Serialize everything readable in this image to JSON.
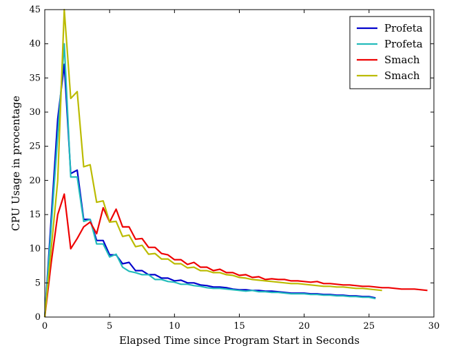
{
  "chart_data": {
    "type": "line",
    "xlabel": "Elapsed Time since Program Start in Seconds",
    "ylabel": "CPU Usage in procentage",
    "xlim": [
      0,
      30
    ],
    "ylim": [
      0,
      45
    ],
    "xticks": [
      0,
      5,
      10,
      15,
      20,
      25,
      30
    ],
    "yticks": [
      0,
      5,
      10,
      15,
      20,
      25,
      30,
      35,
      40,
      45
    ],
    "xtick_labels": [
      "0",
      "5",
      "10",
      "15",
      "20",
      "25",
      "30"
    ],
    "ytick_labels": [
      "0",
      "5",
      "10",
      "15",
      "20",
      "25",
      "30",
      "35",
      "40",
      "45"
    ],
    "grid": false,
    "legend_position": "top-right",
    "series": [
      {
        "name": "Profeta",
        "color": "#0000cc",
        "x": [
          0,
          1,
          1.5,
          2,
          2.5,
          3,
          3.5,
          4,
          4.5,
          5,
          5.5,
          6,
          6.5,
          7,
          7.5,
          8,
          8.5,
          9,
          9.5,
          10,
          10.5,
          11,
          11.5,
          12,
          12.5,
          13,
          13.5,
          14,
          14.5,
          15,
          15.5,
          16,
          16.5,
          17,
          17.5,
          18,
          18.5,
          19,
          19.5,
          20,
          20.5,
          21,
          21.5,
          22,
          22.5,
          23,
          23.5,
          24,
          24.5,
          25,
          25.5
        ],
        "y": [
          0,
          29,
          37,
          21,
          21.5,
          14.3,
          14.3,
          11.2,
          11.2,
          9.1,
          9.1,
          7.8,
          8,
          6.8,
          6.8,
          6.2,
          6.2,
          5.7,
          5.7,
          5.3,
          5.4,
          5,
          5,
          4.7,
          4.6,
          4.4,
          4.4,
          4.3,
          4.1,
          4,
          4,
          3.9,
          3.9,
          3.8,
          3.8,
          3.7,
          3.6,
          3.5,
          3.5,
          3.5,
          3.4,
          3.4,
          3.3,
          3.3,
          3.2,
          3.2,
          3.1,
          3.1,
          3,
          3,
          2.8
        ]
      },
      {
        "name": "Profeta",
        "color": "#22bbbb",
        "x": [
          0,
          1.5,
          2,
          2.5,
          3,
          3.5,
          4,
          4.5,
          5,
          5.5,
          6,
          6.5,
          7,
          7.5,
          8,
          8.5,
          9,
          9.5,
          10,
          10.5,
          11,
          11.5,
          12,
          12.5,
          13,
          13.5,
          14,
          14.5,
          15,
          15.5,
          16,
          16.5,
          17,
          17.5,
          18,
          18.5,
          19,
          19.5,
          20,
          20.5,
          21,
          21.5,
          22,
          22.5,
          23,
          23.5,
          24,
          24.5,
          25,
          25.5
        ],
        "y": [
          0,
          40,
          20.5,
          20.5,
          14,
          14.3,
          10.7,
          10.7,
          8.8,
          9.2,
          7.3,
          6.7,
          6.5,
          6.2,
          6.2,
          5.5,
          5.5,
          5.2,
          5.1,
          4.8,
          4.8,
          4.6,
          4.5,
          4.3,
          4.2,
          4.2,
          4.1,
          4,
          3.9,
          3.8,
          3.9,
          3.7,
          3.7,
          3.6,
          3.6,
          3.5,
          3.4,
          3.4,
          3.4,
          3.3,
          3.3,
          3.2,
          3.2,
          3.1,
          3.1,
          3,
          3,
          2.9,
          2.9,
          2.7
        ]
      },
      {
        "name": "Smach",
        "color": "#ee0000",
        "x": [
          0,
          0.5,
          1,
          1.5,
          2,
          2.5,
          3,
          3.5,
          4,
          4.5,
          5,
          5.5,
          6,
          6.5,
          7,
          7.5,
          8,
          8.5,
          9,
          9.5,
          10,
          10.5,
          11,
          11.5,
          12,
          12.5,
          13,
          13.5,
          14,
          14.5,
          15,
          15.5,
          16,
          16.5,
          17,
          17.5,
          18,
          18.5,
          19,
          19.5,
          20,
          20.5,
          21,
          21.5,
          22,
          22.5,
          23,
          23.5,
          24,
          24.5,
          25,
          25.5,
          26,
          26.5,
          27,
          27.5,
          28,
          28.5,
          29,
          29.5
        ],
        "y": [
          0,
          8,
          15,
          18,
          10,
          11.5,
          13.2,
          13.9,
          12.2,
          16,
          13.9,
          15.8,
          13.2,
          13.2,
          11.4,
          11.5,
          10.2,
          10.2,
          9.3,
          9.1,
          8.4,
          8.4,
          7.7,
          8,
          7.3,
          7.3,
          6.8,
          7,
          6.5,
          6.5,
          6.1,
          6.2,
          5.8,
          5.9,
          5.5,
          5.6,
          5.5,
          5.5,
          5.3,
          5.3,
          5.2,
          5.1,
          5.2,
          4.9,
          4.9,
          4.8,
          4.7,
          4.7,
          4.6,
          4.5,
          4.5,
          4.4,
          4.3,
          4.3,
          4.2,
          4.1,
          4.1,
          4.1,
          4,
          3.9
        ]
      },
      {
        "name": "Smach",
        "color": "#bbbb00",
        "x": [
          0,
          1,
          1.5,
          2,
          2.5,
          3,
          3.5,
          4,
          4.5,
          5,
          5.5,
          6,
          6.5,
          7,
          7.5,
          8,
          8.5,
          9,
          9.5,
          10,
          10.5,
          11,
          11.5,
          12,
          12.5,
          13,
          13.5,
          14,
          14.5,
          15,
          15.5,
          16,
          16.5,
          17,
          17.5,
          18,
          18.5,
          19,
          19.5,
          20,
          20.5,
          21,
          21.5,
          22,
          22.5,
          23,
          23.5,
          24,
          24.5,
          25,
          25.5,
          26
        ],
        "y": [
          0,
          20,
          45,
          32,
          33,
          22,
          22.3,
          16.8,
          17,
          13.9,
          14,
          11.8,
          12,
          10.3,
          10.5,
          9.2,
          9.3,
          8.5,
          8.5,
          7.8,
          7.8,
          7.2,
          7.3,
          6.8,
          6.8,
          6.5,
          6.5,
          6.2,
          6.1,
          5.8,
          5.7,
          5.5,
          5.4,
          5.3,
          5.2,
          5.1,
          5,
          4.9,
          4.9,
          4.8,
          4.7,
          4.6,
          4.5,
          4.5,
          4.4,
          4.4,
          4.3,
          4.2,
          4.2,
          4.1,
          4,
          3.9
        ]
      }
    ]
  }
}
